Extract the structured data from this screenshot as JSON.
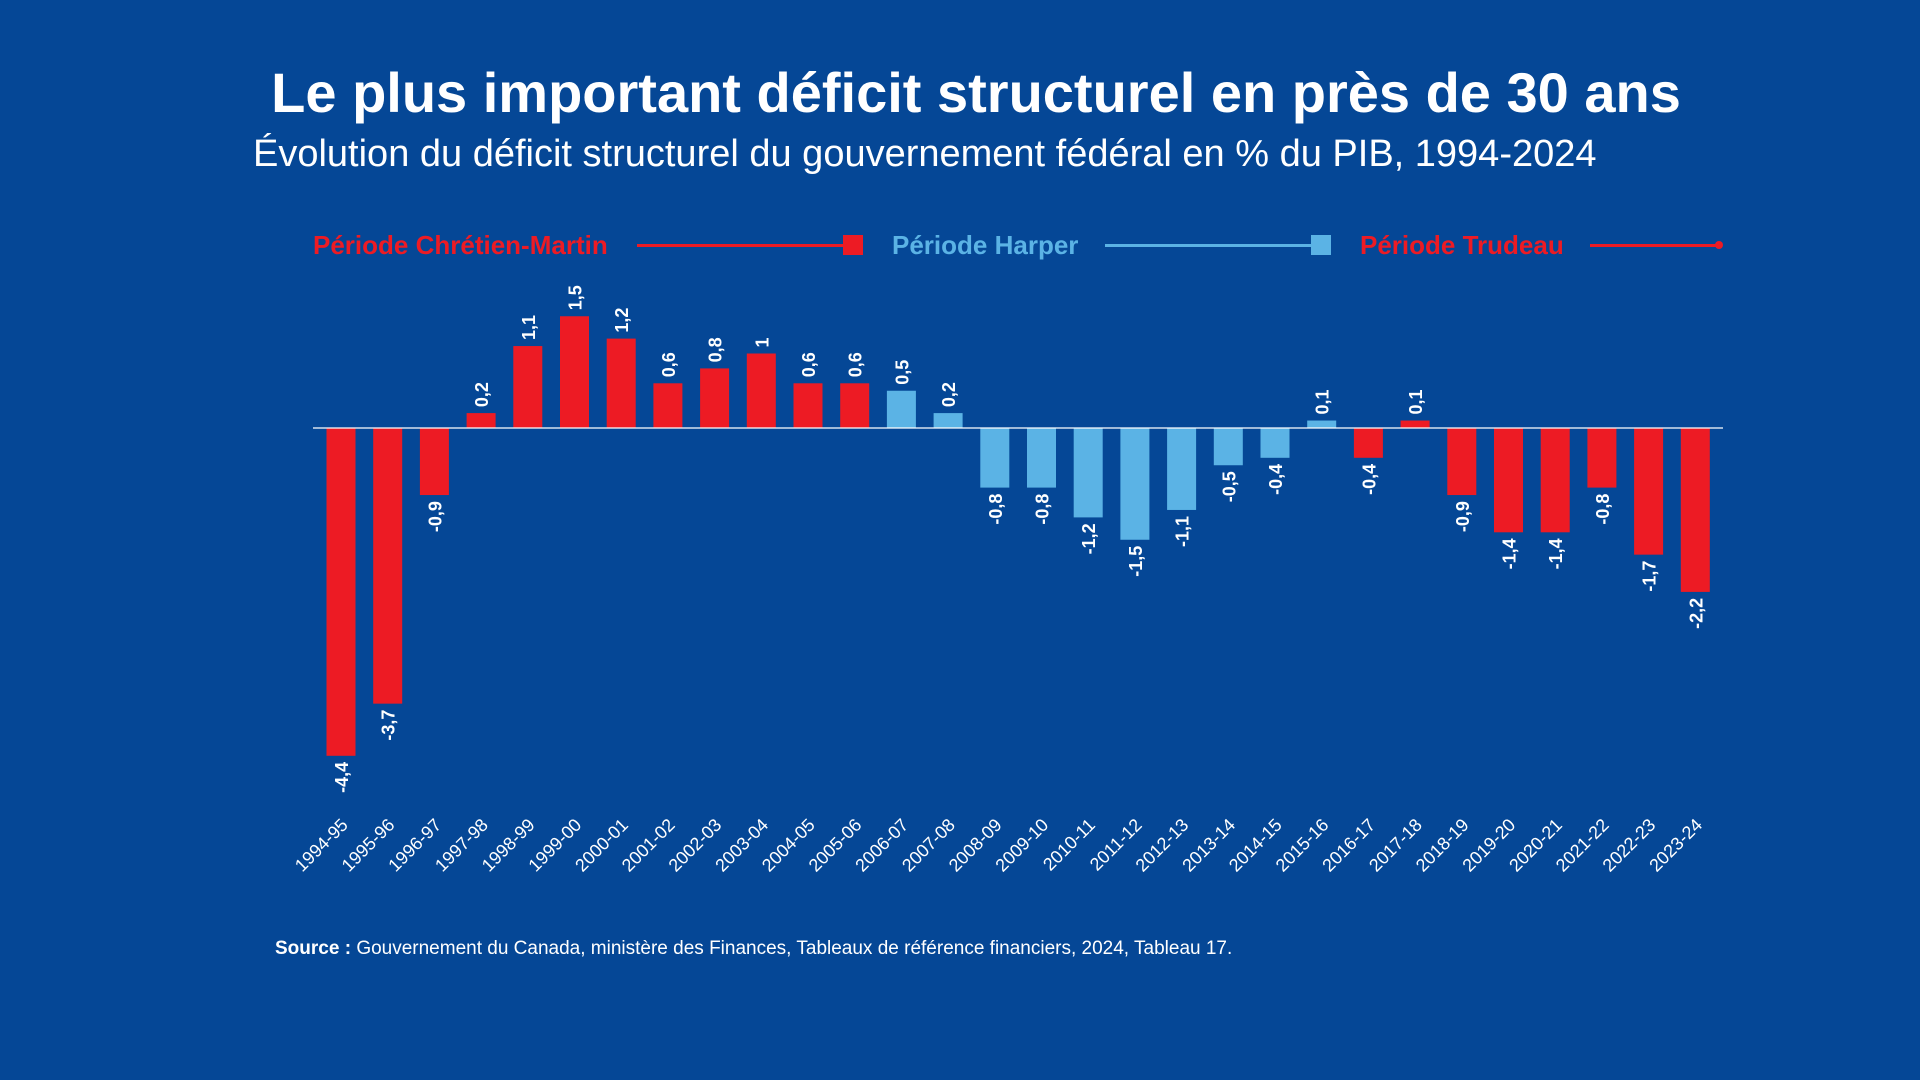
{
  "header": {
    "title": "Le plus important déficit structurel en près de 30 ans",
    "subtitle": "Évolution du déficit structurel du gouvernement fédéral en % du PIB, 1994-2024"
  },
  "legend": {
    "chretien_martin": "Période Chrétien-Martin",
    "harper": "Période Harper",
    "trudeau": "Période Trudeau"
  },
  "colors": {
    "background": "#054796",
    "red": "#ed1b24",
    "light_blue": "#5bb3e5",
    "text": "#ffffff"
  },
  "source": {
    "label": "Source :",
    "text": "Gouvernement du Canada, ministère des Finances, Tableaux de référence financiers, 2024, Tableau 17."
  },
  "chart_data": {
    "type": "bar",
    "categories": [
      "1994-95",
      "1995-96",
      "1996-97",
      "1997-98",
      "1998-99",
      "1999-00",
      "2000-01",
      "2001-02",
      "2002-03",
      "2003-04",
      "2004-05",
      "2005-06",
      "2006-07",
      "2007-08",
      "2008-09",
      "2009-10",
      "2010-11",
      "2011-12",
      "2012-13",
      "2013-14",
      "2014-15",
      "2015-16",
      "2016-17",
      "2017-18",
      "2018-19",
      "2019-20",
      "2020-21",
      "2021-22",
      "2022-23",
      "2023-24"
    ],
    "values": [
      -4.4,
      -3.7,
      -0.9,
      0.2,
      1.1,
      1.5,
      1.2,
      0.6,
      0.8,
      1,
      0.6,
      0.6,
      0.5,
      0.2,
      -0.8,
      -0.8,
      -1.2,
      -1.5,
      -1.1,
      -0.5,
      -0.4,
      0.1,
      -0.4,
      0.1,
      -0.9,
      -1.4,
      -1.4,
      -0.8,
      -1.7,
      -2.2
    ],
    "labels": [
      "-4,4",
      "-3,7",
      "-0,9",
      "0,2",
      "1,1",
      "1,5",
      "1,2",
      "0,6",
      "0,8",
      "1",
      "0,6",
      "0,6",
      "0,5",
      "0,2",
      "-0,8",
      "-0,8",
      "-1,2",
      "-1,5",
      "-1,1",
      "-0,5",
      "-0,4",
      "0,1",
      "-0,4",
      "0,1",
      "-0,9",
      "-1,4",
      "-1,4",
      "-0,8",
      "-1,7",
      "-2,2"
    ],
    "periods": [
      "Chrétien-Martin",
      "Chrétien-Martin",
      "Chrétien-Martin",
      "Chrétien-Martin",
      "Chrétien-Martin",
      "Chrétien-Martin",
      "Chrétien-Martin",
      "Chrétien-Martin",
      "Chrétien-Martin",
      "Chrétien-Martin",
      "Chrétien-Martin",
      "Chrétien-Martin",
      "Harper",
      "Harper",
      "Harper",
      "Harper",
      "Harper",
      "Harper",
      "Harper",
      "Harper",
      "Harper",
      "Harper",
      "Trudeau",
      "Trudeau",
      "Trudeau",
      "Trudeau",
      "Trudeau",
      "Trudeau",
      "Trudeau",
      "Trudeau"
    ],
    "ylim": [
      -4.4,
      1.5
    ],
    "grid": false,
    "legend_position": "top"
  }
}
